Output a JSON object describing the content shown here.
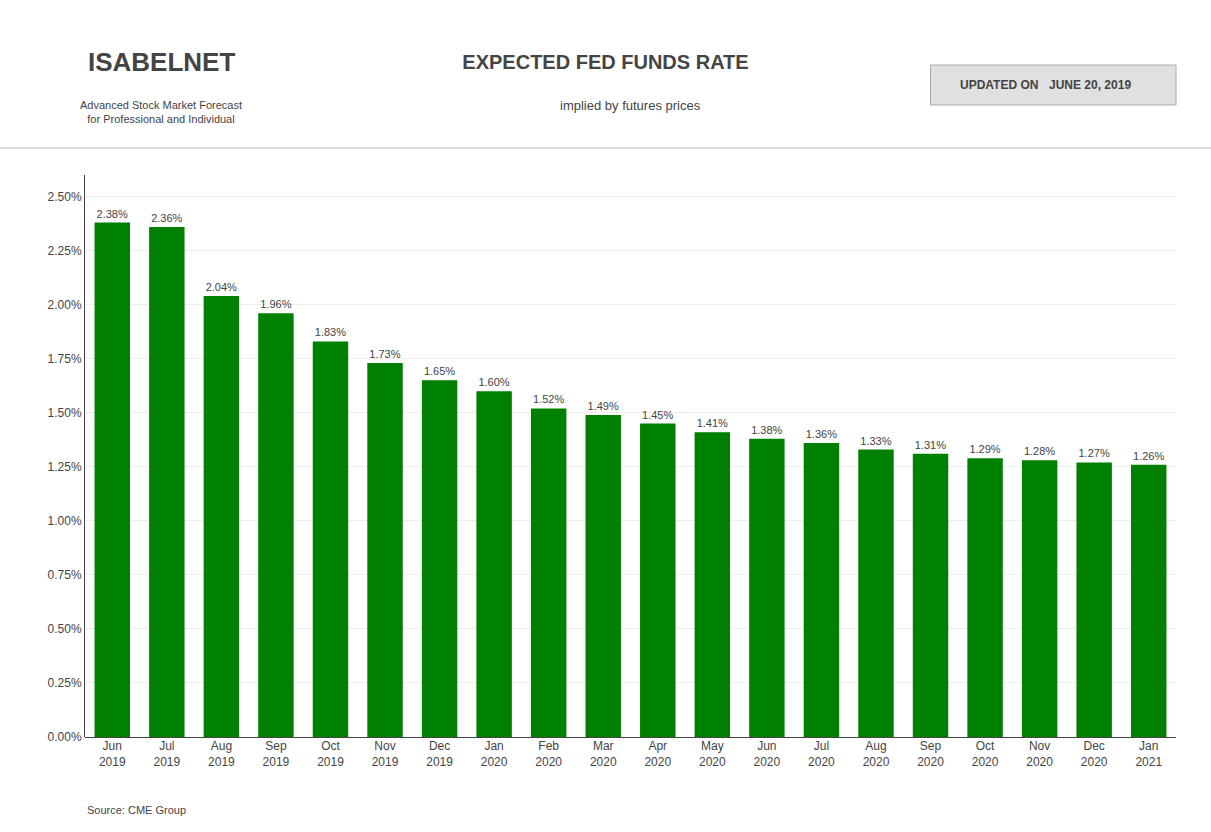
{
  "chart_data": {
    "type": "bar",
    "title": "EXPECTED FED FUNDS RATE",
    "subtitle": "implied by futures prices",
    "annotations": [
      "ISABELNET",
      "Advanced Stock Market Forecast\nfor Professional and Individual",
      "UPDATED ON",
      "JUNE 20, 2019",
      "Source: CME Group"
    ],
    "categories": [
      "Jun\n2019",
      "Jul\n2019",
      "Aug\n2019",
      "Sep\n2019",
      "Oct\n2019",
      "Nov\n2019",
      "Dec\n2019",
      "Jan\n2020",
      "Feb\n2020",
      "Mar\n2020",
      "Apr\n2020",
      "May\n2020",
      "Jun\n2020",
      "Jul\n2020",
      "Aug\n2020",
      "Sep\n2020",
      "Oct\n2020",
      "Nov\n2020",
      "Dec\n2020",
      "Jan\n2021"
    ],
    "values": [
      2.38,
      2.36,
      2.04,
      1.96,
      1.83,
      1.73,
      1.65,
      1.6,
      1.52,
      1.49,
      1.45,
      1.41,
      1.38,
      1.36,
      1.33,
      1.31,
      1.29,
      1.28,
      1.27,
      1.26
    ],
    "value_labels": [
      "2.38%",
      "2.36%",
      "2.04%",
      "1.96%",
      "1.83%",
      "1.73%",
      "1.65%",
      "1.60%",
      "1.52%",
      "1.49%",
      "1.45%",
      "1.41%",
      "1.38%",
      "1.36%",
      "1.33%",
      "1.31%",
      "1.29%",
      "1.28%",
      "1.27%",
      "1.26%"
    ],
    "data_labels": true,
    "color": "#008000",
    "ylim": [
      0,
      2.6
    ],
    "yticks": [
      {
        "value": 0,
        "label": "0.00%"
      },
      {
        "value": 0.25,
        "label": "0.25%"
      },
      {
        "value": 0.5,
        "label": "0.50%"
      },
      {
        "value": 0.75,
        "label": "0.75%"
      },
      {
        "value": 1,
        "label": "1.00%"
      },
      {
        "value": 1.25,
        "label": "1.25%"
      },
      {
        "value": 1.5,
        "label": "1.50%"
      },
      {
        "value": 1.75,
        "label": "1.75%"
      },
      {
        "value": 2,
        "label": "2.00%"
      },
      {
        "value": 2.25,
        "label": "2.25%"
      },
      {
        "value": 2.5,
        "label": "2.50%"
      }
    ],
    "grid": true
  }
}
